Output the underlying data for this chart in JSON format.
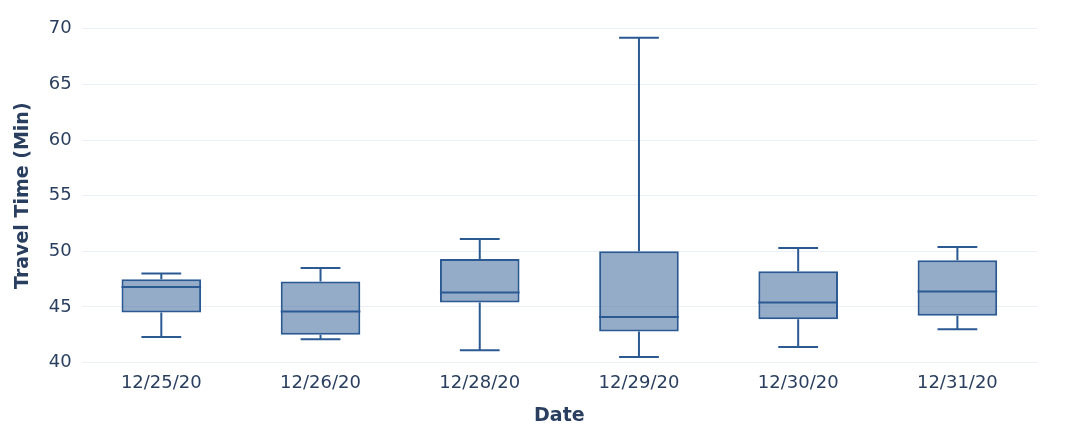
{
  "chart_data": {
    "type": "box",
    "xlabel": "Date",
    "ylabel": "Travel Time (Min)",
    "categories": [
      "12/25/20",
      "12/26/20",
      "12/28/20",
      "12/29/20",
      "12/30/20",
      "12/31/20"
    ],
    "color": "#2b5a93",
    "boxes": [
      {
        "low": 42.3,
        "q1": 44.5,
        "median": 46.8,
        "q3": 47.5,
        "high": 48.0
      },
      {
        "low": 42.1,
        "q1": 42.5,
        "median": 44.6,
        "q3": 47.3,
        "high": 48.5
      },
      {
        "low": 41.1,
        "q1": 45.4,
        "median": 46.3,
        "q3": 49.3,
        "high": 51.1
      },
      {
        "low": 40.5,
        "q1": 42.8,
        "median": 44.1,
        "q3": 50.0,
        "high": 69.2
      },
      {
        "low": 41.4,
        "q1": 43.9,
        "median": 45.4,
        "q3": 48.2,
        "high": 50.3
      },
      {
        "low": 43.0,
        "q1": 44.2,
        "median": 46.4,
        "q3": 49.2,
        "high": 50.4
      }
    ],
    "ylim": [
      40,
      70
    ],
    "yticks": [
      40,
      45,
      50,
      55,
      60,
      65,
      70
    ],
    "grid": "y",
    "legend": false
  }
}
